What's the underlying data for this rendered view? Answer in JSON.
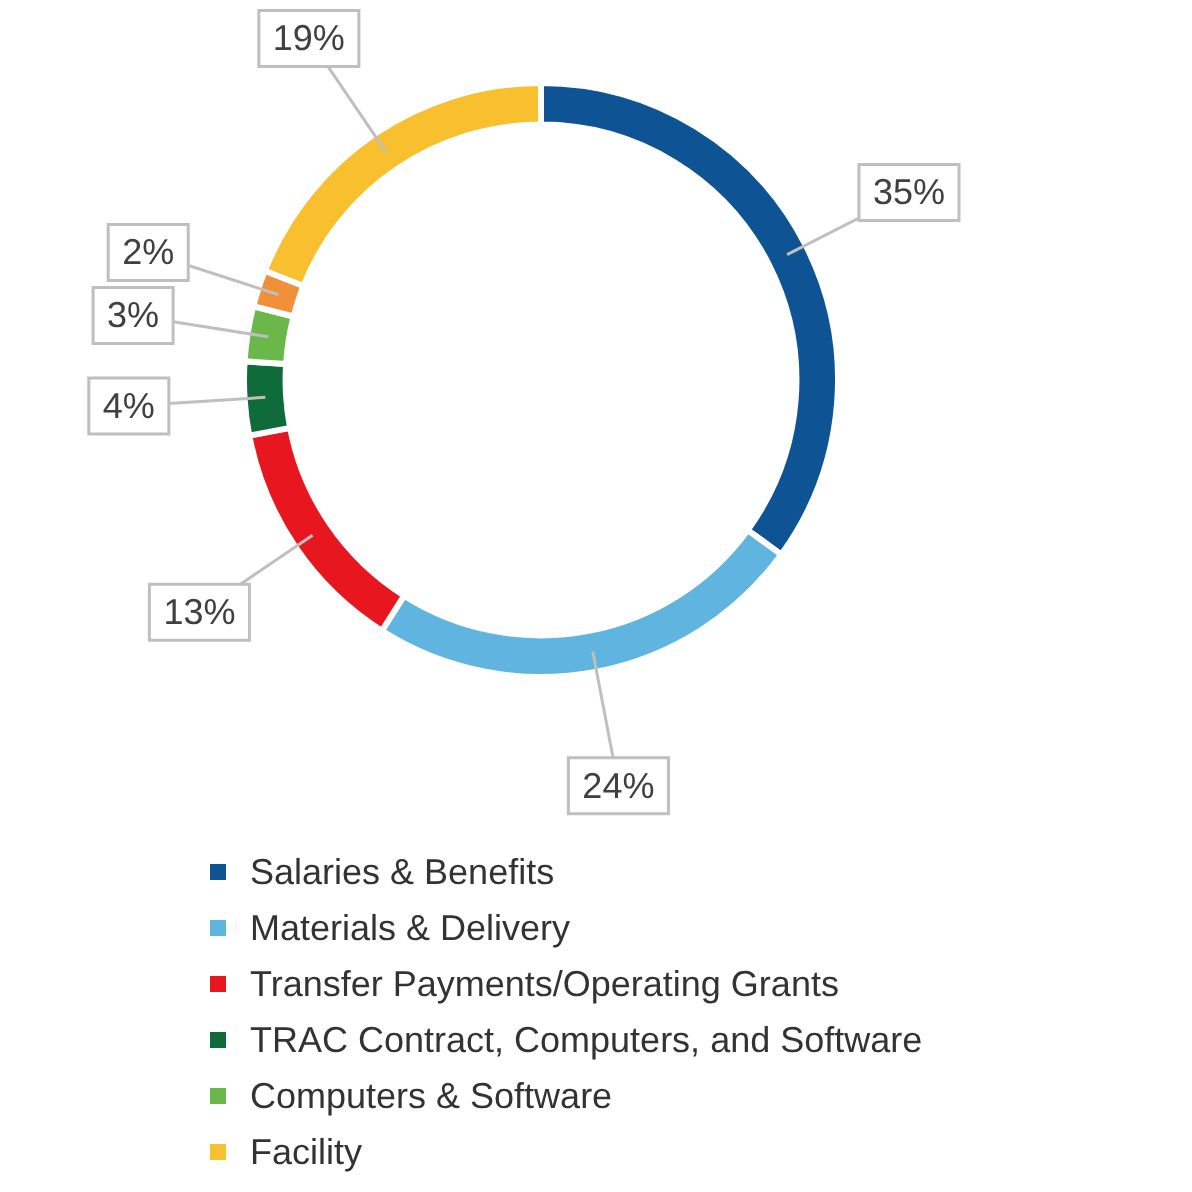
{
  "chart_data": {
    "type": "donut",
    "categories": [
      "Salaries & Benefits",
      "Materials & Delivery",
      "Transfer Payments/Operating Grants",
      "TRAC Contract, Computers, and Software",
      "Computers & Software",
      null,
      "Facility"
    ],
    "values": [
      35,
      24,
      13,
      4,
      3,
      2,
      19
    ],
    "value_labels": [
      "35%",
      "24%",
      "13%",
      "4%",
      "3%",
      "2%",
      "19%"
    ],
    "colors": [
      "#0e5494",
      "#5fb4e0",
      "#e8171f",
      "#0f6b3a",
      "#6ab84a",
      "#f0913a",
      "#f8bf2e"
    ],
    "legend": "bottom"
  }
}
